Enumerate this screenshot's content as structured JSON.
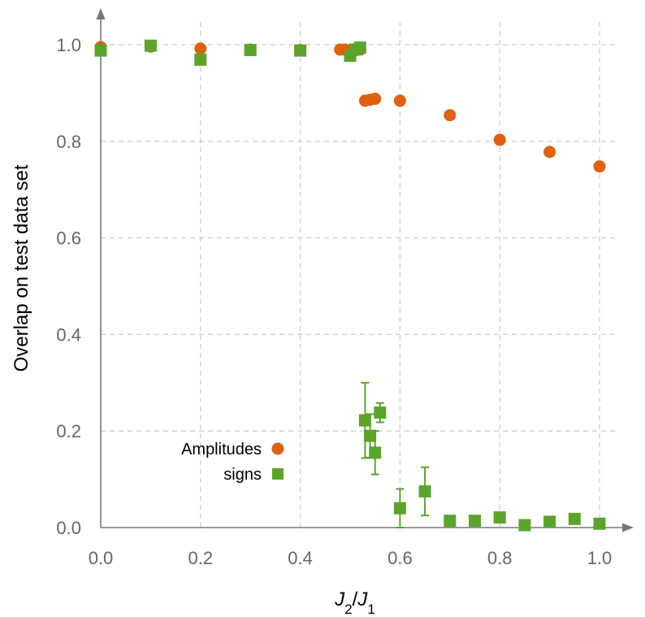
{
  "chart_data": {
    "type": "scatter",
    "title": "",
    "xlabel": "J2/J1",
    "ylabel": "Overlap on test data set",
    "xlim": [
      0.0,
      1.05
    ],
    "ylim": [
      0.0,
      1.05
    ],
    "xticks": [
      0.0,
      0.2,
      0.4,
      0.6,
      0.8,
      1.0
    ],
    "yticks": [
      0.0,
      0.2,
      0.4,
      0.6,
      0.8,
      1.0
    ],
    "xtick_labels": [
      "0.0",
      "0.2",
      "0.4",
      "0.6",
      "0.8",
      "1.0"
    ],
    "ytick_labels": [
      "0.0",
      "0.2",
      "0.4",
      "0.6",
      "0.8",
      "1.0"
    ],
    "grid": true,
    "legend_position": "bottom-left",
    "series": [
      {
        "name": "Amplitudes",
        "marker": "circle",
        "color": "#e0600f",
        "points": [
          {
            "x": 0.0,
            "y": 0.995
          },
          {
            "x": 0.1,
            "y": 0.996
          },
          {
            "x": 0.2,
            "y": 0.992
          },
          {
            "x": 0.3,
            "y": 0.99
          },
          {
            "x": 0.4,
            "y": 0.989
          },
          {
            "x": 0.48,
            "y": 0.99
          },
          {
            "x": 0.49,
            "y": 0.99
          },
          {
            "x": 0.5,
            "y": 0.986
          },
          {
            "x": 0.51,
            "y": 0.988
          },
          {
            "x": 0.52,
            "y": 0.99
          },
          {
            "x": 0.53,
            "y": 0.884
          },
          {
            "x": 0.54,
            "y": 0.886
          },
          {
            "x": 0.55,
            "y": 0.888
          },
          {
            "x": 0.6,
            "y": 0.884
          },
          {
            "x": 0.7,
            "y": 0.854
          },
          {
            "x": 0.8,
            "y": 0.803
          },
          {
            "x": 0.9,
            "y": 0.778
          },
          {
            "x": 1.0,
            "y": 0.748
          }
        ]
      },
      {
        "name": "signs",
        "marker": "square",
        "color": "#5ba42a",
        "points": [
          {
            "x": 0.0,
            "y": 0.988
          },
          {
            "x": 0.1,
            "y": 0.998
          },
          {
            "x": 0.2,
            "y": 0.969
          },
          {
            "x": 0.3,
            "y": 0.989
          },
          {
            "x": 0.4,
            "y": 0.988
          },
          {
            "x": 0.5,
            "y": 0.977
          },
          {
            "x": 0.51,
            "y": 0.99
          },
          {
            "x": 0.52,
            "y": 0.994
          },
          {
            "x": 0.53,
            "y": 0.222,
            "err": 0.078
          },
          {
            "x": 0.54,
            "y": 0.19,
            "err": 0.045
          },
          {
            "x": 0.55,
            "y": 0.155,
            "err": 0.045
          },
          {
            "x": 0.56,
            "y": 0.238,
            "err": 0.02
          },
          {
            "x": 0.6,
            "y": 0.04,
            "err": 0.04
          },
          {
            "x": 0.65,
            "y": 0.075,
            "err": 0.05
          },
          {
            "x": 0.7,
            "y": 0.014
          },
          {
            "x": 0.75,
            "y": 0.014
          },
          {
            "x": 0.8,
            "y": 0.021
          },
          {
            "x": 0.85,
            "y": 0.005
          },
          {
            "x": 0.9,
            "y": 0.012
          },
          {
            "x": 0.95,
            "y": 0.018
          },
          {
            "x": 1.0,
            "y": 0.008
          }
        ]
      }
    ]
  }
}
